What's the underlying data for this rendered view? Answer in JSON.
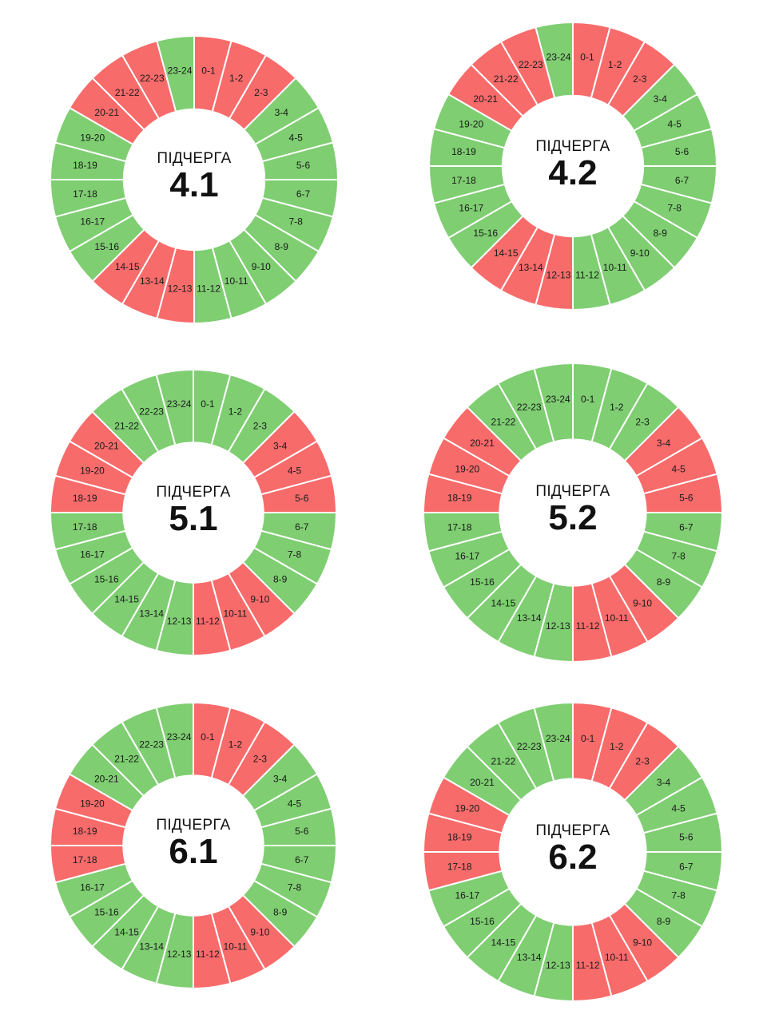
{
  "colors": {
    "on": "#7fce72",
    "off": "#f86b6b"
  },
  "center_label": "ПІДЧЕРГА",
  "chart_data": [
    {
      "type": "pie",
      "subqueue": "4.1",
      "categories": [
        "0-1",
        "1-2",
        "2-3",
        "3-4",
        "4-5",
        "5-6",
        "6-7",
        "7-8",
        "8-9",
        "9-10",
        "10-11",
        "11-12",
        "12-13",
        "13-14",
        "14-15",
        "15-16",
        "16-17",
        "17-18",
        "18-19",
        "19-20",
        "20-21",
        "21-22",
        "22-23",
        "23-24"
      ],
      "status": [
        "off",
        "off",
        "off",
        "on",
        "on",
        "on",
        "on",
        "on",
        "on",
        "on",
        "on",
        "on",
        "off",
        "off",
        "off",
        "on",
        "on",
        "on",
        "on",
        "on",
        "off",
        "off",
        "off",
        "on"
      ]
    },
    {
      "type": "pie",
      "subqueue": "4.2",
      "categories": [
        "0-1",
        "1-2",
        "2-3",
        "3-4",
        "4-5",
        "5-6",
        "6-7",
        "7-8",
        "8-9",
        "9-10",
        "10-11",
        "11-12",
        "12-13",
        "13-14",
        "14-15",
        "15-16",
        "16-17",
        "17-18",
        "18-19",
        "19-20",
        "20-21",
        "21-22",
        "22-23",
        "23-24"
      ],
      "status": [
        "off",
        "off",
        "off",
        "on",
        "on",
        "on",
        "on",
        "on",
        "on",
        "on",
        "on",
        "on",
        "off",
        "off",
        "off",
        "on",
        "on",
        "on",
        "on",
        "on",
        "off",
        "off",
        "off",
        "on"
      ]
    },
    {
      "type": "pie",
      "subqueue": "5.1",
      "categories": [
        "0-1",
        "1-2",
        "2-3",
        "3-4",
        "4-5",
        "5-6",
        "6-7",
        "7-8",
        "8-9",
        "9-10",
        "10-11",
        "11-12",
        "12-13",
        "13-14",
        "14-15",
        "15-16",
        "16-17",
        "17-18",
        "18-19",
        "19-20",
        "20-21",
        "21-22",
        "22-23",
        "23-24"
      ],
      "status": [
        "on",
        "on",
        "on",
        "off",
        "off",
        "off",
        "on",
        "on",
        "on",
        "off",
        "off",
        "off",
        "on",
        "on",
        "on",
        "on",
        "on",
        "on",
        "off",
        "off",
        "off",
        "on",
        "on",
        "on"
      ]
    },
    {
      "type": "pie",
      "subqueue": "5.2",
      "categories": [
        "0-1",
        "1-2",
        "2-3",
        "3-4",
        "4-5",
        "5-6",
        "6-7",
        "7-8",
        "8-9",
        "9-10",
        "10-11",
        "11-12",
        "12-13",
        "13-14",
        "14-15",
        "15-16",
        "16-17",
        "17-18",
        "18-19",
        "19-20",
        "20-21",
        "21-22",
        "22-23",
        "23-24"
      ],
      "status": [
        "on",
        "on",
        "on",
        "off",
        "off",
        "off",
        "on",
        "on",
        "on",
        "off",
        "off",
        "off",
        "on",
        "on",
        "on",
        "on",
        "on",
        "on",
        "off",
        "off",
        "off",
        "on",
        "on",
        "on"
      ]
    },
    {
      "type": "pie",
      "subqueue": "6.1",
      "categories": [
        "0-1",
        "1-2",
        "2-3",
        "3-4",
        "4-5",
        "5-6",
        "6-7",
        "7-8",
        "8-9",
        "9-10",
        "10-11",
        "11-12",
        "12-13",
        "13-14",
        "14-15",
        "15-16",
        "16-17",
        "17-18",
        "18-19",
        "19-20",
        "20-21",
        "21-22",
        "22-23",
        "23-24"
      ],
      "status": [
        "off",
        "off",
        "off",
        "on",
        "on",
        "on",
        "on",
        "on",
        "on",
        "off",
        "off",
        "off",
        "on",
        "on",
        "on",
        "on",
        "on",
        "off",
        "off",
        "off",
        "on",
        "on",
        "on",
        "on"
      ]
    },
    {
      "type": "pie",
      "subqueue": "6.2",
      "categories": [
        "0-1",
        "1-2",
        "2-3",
        "3-4",
        "4-5",
        "5-6",
        "6-7",
        "7-8",
        "8-9",
        "9-10",
        "10-11",
        "11-12",
        "12-13",
        "13-14",
        "14-15",
        "15-16",
        "16-17",
        "17-18",
        "18-19",
        "19-20",
        "20-21",
        "21-22",
        "22-23",
        "23-24"
      ],
      "status": [
        "off",
        "off",
        "off",
        "on",
        "on",
        "on",
        "on",
        "on",
        "on",
        "off",
        "off",
        "off",
        "on",
        "on",
        "on",
        "on",
        "on",
        "off",
        "off",
        "off",
        "on",
        "on",
        "on",
        "on"
      ]
    }
  ]
}
